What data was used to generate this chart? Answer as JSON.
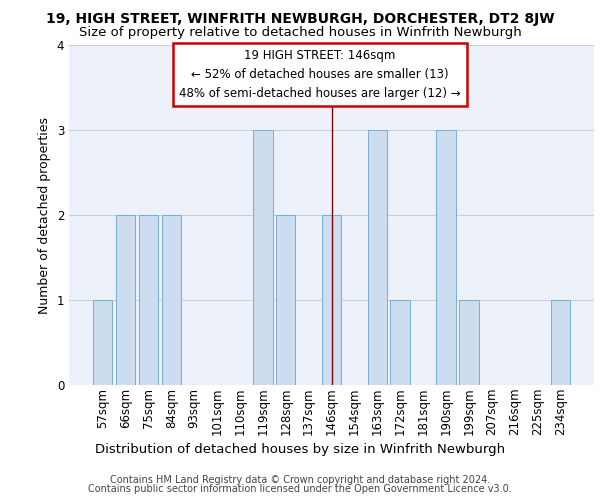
{
  "title1": "19, HIGH STREET, WINFRITH NEWBURGH, DORCHESTER, DT2 8JW",
  "title2": "Size of property relative to detached houses in Winfrith Newburgh",
  "xlabel": "Distribution of detached houses by size in Winfrith Newburgh",
  "ylabel": "Number of detached properties",
  "categories": [
    "57sqm",
    "66sqm",
    "75sqm",
    "84sqm",
    "93sqm",
    "101sqm",
    "110sqm",
    "119sqm",
    "128sqm",
    "137sqm",
    "146sqm",
    "154sqm",
    "163sqm",
    "172sqm",
    "181sqm",
    "190sqm",
    "199sqm",
    "207sqm",
    "216sqm",
    "225sqm",
    "234sqm"
  ],
  "values": [
    1,
    2,
    2,
    2,
    0,
    0,
    0,
    3,
    2,
    0,
    2,
    0,
    3,
    1,
    0,
    3,
    1,
    0,
    0,
    0,
    1
  ],
  "highlight_index": 10,
  "bar_color": "#ccddf0",
  "bar_edge_color": "#7aadd4",
  "highlight_line_color": "#8b0000",
  "annotation_text": "19 HIGH STREET: 146sqm\n← 52% of detached houses are smaller (13)\n48% of semi-detached houses are larger (12) →",
  "annotation_border_color": "#cc0000",
  "footer1": "Contains HM Land Registry data © Crown copyright and database right 2024.",
  "footer2": "Contains public sector information licensed under the Open Government Licence v3.0.",
  "ylim": [
    0,
    4
  ],
  "yticks": [
    0,
    1,
    2,
    3,
    4
  ],
  "bg_color": "#edf2fa",
  "grid_color": "#c5cfe0",
  "title1_fontsize": 10.0,
  "title2_fontsize": 9.5,
  "axis_fontsize": 8.5,
  "ylabel_fontsize": 9.0,
  "xlabel_fontsize": 9.5,
  "annotation_fontsize": 8.5,
  "footer_fontsize": 7.0
}
